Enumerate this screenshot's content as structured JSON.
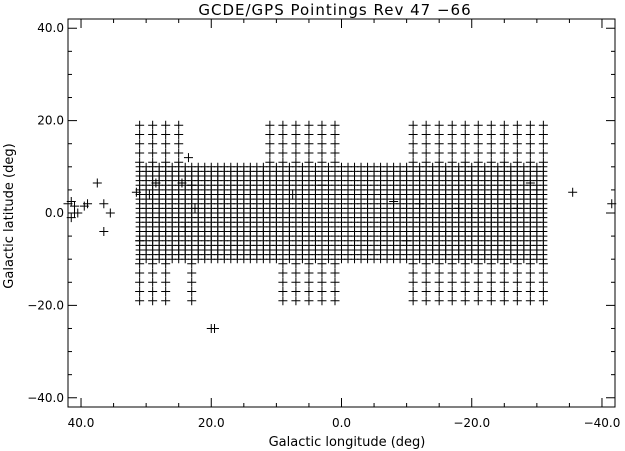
{
  "chart_data": {
    "type": "scatter",
    "title": "GCDE/GPS Pointings Rev 47 −66",
    "xlabel": "Galactic longitude (deg)",
    "ylabel": "Galactic latitude (deg)",
    "xlim": [
      42,
      -42
    ],
    "ylim": [
      -42,
      42
    ],
    "x_ticks": [
      40,
      20,
      0,
      -20,
      -40
    ],
    "x_tick_labels": [
      "40.0",
      "20.0",
      "0.0",
      "−20.0",
      "−40.0"
    ],
    "y_ticks": [
      40,
      20,
      0,
      -20,
      -40
    ],
    "y_tick_labels": [
      "40.0",
      "20.0",
      "0.0",
      "−20.0",
      "−40.0"
    ],
    "marker": "plus",
    "grid": false,
    "dense_region": {
      "description_note": "regular scan grid of pointings",
      "l_range": [
        31,
        -31
      ],
      "b_range": [
        -10,
        10
      ],
      "l_step": 1.0,
      "b_step": 1.0
    },
    "points": [
      [
        42,
        2
      ],
      [
        41.5,
        2.5
      ],
      [
        41,
        1.5
      ],
      [
        40.5,
        0
      ],
      [
        41.5,
        -1
      ],
      [
        39.5,
        1.5
      ],
      [
        39,
        2
      ],
      [
        41,
        0
      ],
      [
        37.5,
        6.5
      ],
      [
        36.5,
        2
      ],
      [
        35.5,
        0
      ],
      [
        36.5,
        -4
      ],
      [
        31.5,
        4.5
      ],
      [
        31,
        -6
      ],
      [
        29.5,
        4
      ],
      [
        28.5,
        6.5
      ],
      [
        24.5,
        6.5
      ],
      [
        23.5,
        12
      ],
      [
        23,
        6
      ],
      [
        22.5,
        1
      ],
      [
        24,
        -3
      ],
      [
        20,
        -25
      ],
      [
        19.5,
        -25
      ],
      [
        7.5,
        4
      ],
      [
        3,
        6
      ],
      [
        -5,
        4
      ],
      [
        -8,
        2.5
      ],
      [
        -10,
        -6
      ],
      [
        -12,
        2
      ],
      [
        -18,
        1
      ],
      [
        -20,
        0
      ],
      [
        -26,
        4
      ],
      [
        -27,
        1
      ],
      [
        -29,
        6.5
      ],
      [
        -30,
        5
      ],
      [
        -35.5,
        4.5
      ],
      [
        -41.5,
        2
      ]
    ],
    "upper_cluster_left": {
      "l": [
        31,
        29,
        27,
        25
      ],
      "b": [
        19,
        17,
        15,
        13,
        11
      ]
    },
    "upper_cluster_mid": {
      "l": [
        11,
        9,
        7,
        5,
        3,
        1
      ],
      "b": [
        19,
        17,
        15,
        13,
        11
      ]
    },
    "upper_cluster_right": {
      "l": [
        -11,
        -13,
        -15,
        -17,
        -19,
        -21,
        -23,
        -25,
        -27,
        -29,
        -31
      ],
      "b": [
        19,
        17,
        15,
        13,
        11
      ]
    },
    "lower_cluster_left": {
      "l": [
        31,
        29,
        27,
        23
      ],
      "b": [
        -11,
        -13,
        -15,
        -17,
        -19
      ]
    },
    "lower_cluster_mid": {
      "l": [
        9,
        7,
        5,
        3,
        1
      ],
      "b": [
        -11,
        -13,
        -15,
        -17,
        -19
      ]
    },
    "lower_cluster_right": {
      "l": [
        -11,
        -13,
        -15,
        -17,
        -19,
        -21,
        -23,
        -25,
        -27,
        -29,
        -31
      ],
      "b": [
        -11,
        -13,
        -15,
        -17,
        -19
      ]
    }
  }
}
